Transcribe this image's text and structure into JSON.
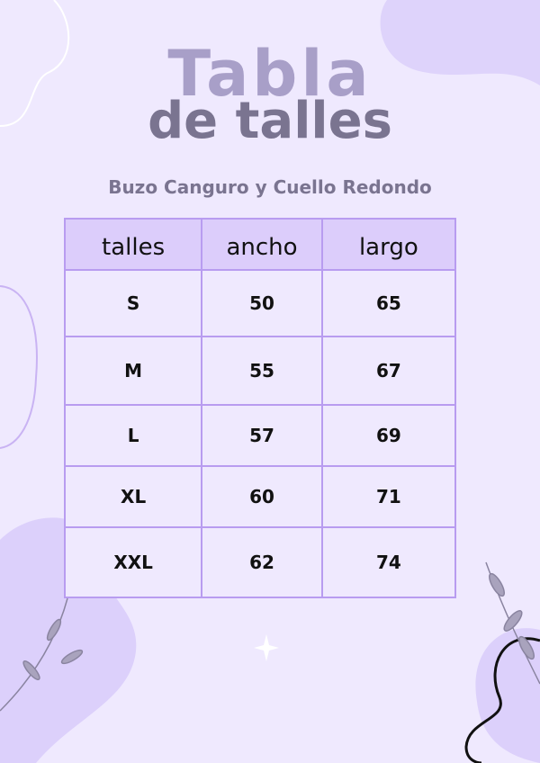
{
  "title": {
    "line1": "Tabla",
    "line2": "de talles"
  },
  "subtitle": "Buzo Canguro y Cuello Redondo",
  "table": {
    "headers": [
      "talles",
      "ancho",
      "largo"
    ],
    "rows": [
      [
        "S",
        "50",
        "65"
      ],
      [
        "M",
        "55",
        "67"
      ],
      [
        "L",
        "57",
        "69"
      ],
      [
        "XL",
        "60",
        "71"
      ],
      [
        "XXL",
        "62",
        "74"
      ]
    ]
  },
  "colors": {
    "background": "#efe9fe",
    "header": "#dccdfb",
    "border": "#b89cf0",
    "title": "#a89fc8",
    "subtitle": "#7a7490"
  }
}
